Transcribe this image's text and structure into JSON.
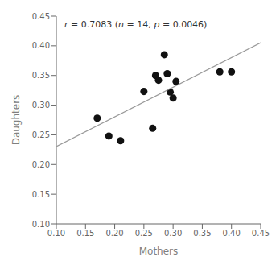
{
  "chart_data": {
    "type": "scatter",
    "xlabel": "Mothers",
    "ylabel": "Daughters",
    "annotation": "r = 0.7083 (n = 14; p = 0.0046)",
    "xlim": [
      0.1,
      0.45
    ],
    "ylim": [
      0.1,
      0.45
    ],
    "xticks": [
      {
        "value": 0.1,
        "label": "0.10"
      },
      0.15,
      {
        "value": 0.2,
        "label": "0.20"
      },
      0.25,
      {
        "value": 0.3,
        "label": "0.30"
      },
      0.35,
      {
        "value": 0.4,
        "label": "0.40"
      },
      0.45
    ],
    "yticks": [
      {
        "value": 0.1,
        "label": "0.10"
      },
      0.15,
      {
        "value": 0.2,
        "label": "0.20"
      },
      0.25,
      {
        "value": 0.3,
        "label": "0.30"
      },
      0.35,
      {
        "value": 0.4,
        "label": "0.40"
      },
      0.45
    ],
    "grid": false,
    "series": [
      {
        "type": "scatter",
        "color": "#111111",
        "x": [
          0.17,
          0.19,
          0.21,
          0.25,
          0.265,
          0.27,
          0.275,
          0.285,
          0.29,
          0.295,
          0.3,
          0.305,
          0.38,
          0.4
        ],
        "values": [
          0.278,
          0.248,
          0.24,
          0.323,
          0.261,
          0.35,
          0.342,
          0.385,
          0.353,
          0.322,
          0.312,
          0.34,
          0.356,
          0.356
        ]
      },
      {
        "type": "line",
        "color": "#999999",
        "x": [
          0.1,
          0.45
        ],
        "values": [
          0.2303,
          0.4052
        ]
      }
    ]
  }
}
